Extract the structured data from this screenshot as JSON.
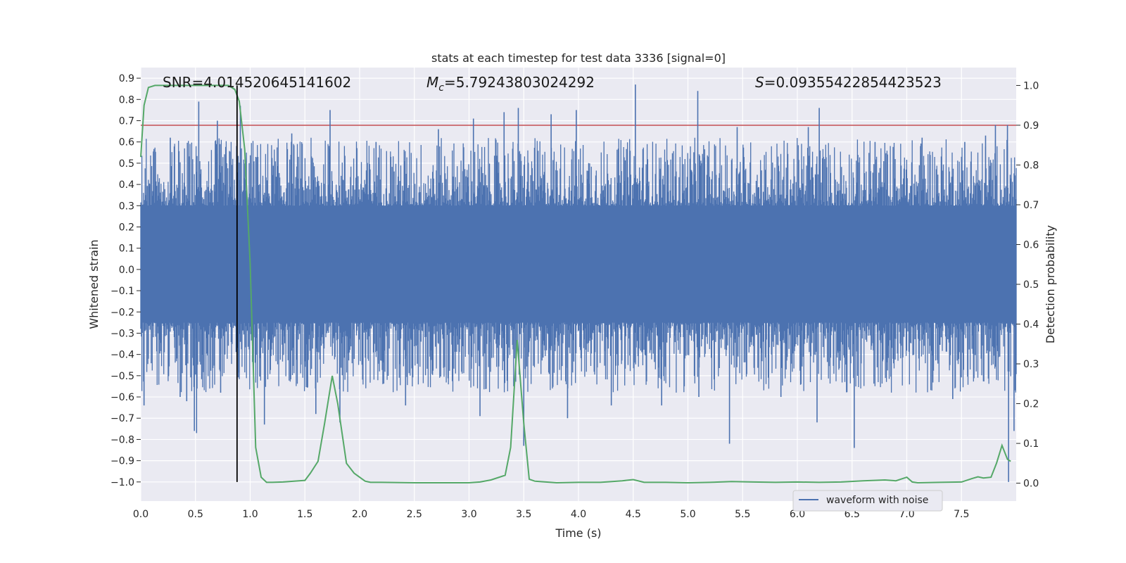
{
  "chart_data": {
    "type": "line",
    "title": "stats at each timestep for test data 3336 [signal=0]",
    "xlabel": "Time (s)",
    "ylabel": "Whitened strain",
    "y2label": "Detection probability",
    "xlim": [
      0.0,
      8.0
    ],
    "ylim": [
      -1.09,
      0.95
    ],
    "y2lim": [
      -0.045,
      1.045
    ],
    "x_ticks": [
      "0.0",
      "0.5",
      "1.0",
      "1.5",
      "2.0",
      "2.5",
      "3.0",
      "3.5",
      "4.0",
      "4.5",
      "5.0",
      "5.5",
      "6.0",
      "6.5",
      "7.0",
      "7.5"
    ],
    "y_ticks": [
      "0.9",
      "0.8",
      "0.7",
      "0.6",
      "0.5",
      "0.4",
      "0.3",
      "0.2",
      "0.1",
      "0.0",
      "−0.1",
      "−0.2",
      "−0.3",
      "−0.4",
      "−0.5",
      "−0.6",
      "−0.7",
      "−0.8",
      "−0.9",
      "−1.0"
    ],
    "y2_ticks": [
      "1.0",
      "0.9",
      "0.8",
      "0.7",
      "0.6",
      "0.5",
      "0.4",
      "0.3",
      "0.2",
      "0.1",
      "0.0"
    ],
    "grid": true,
    "legend": {
      "position": "bottom-right",
      "entries": [
        "waveform with noise"
      ]
    },
    "annotations": {
      "snr": "SNR=4.014520645141602",
      "mc_symbol": "M",
      "mc_sub": "c",
      "mc_value": "=5.79243803024292",
      "s_symbol": "S",
      "s_value": "=0.09355422854423523"
    },
    "threshold_y2": 0.9,
    "marker_x": 0.88,
    "series": [
      {
        "name": "waveform with noise",
        "axis": "left",
        "color": "#4c72b0",
        "spikes": [
          {
            "x": 0.03,
            "y": -0.64
          },
          {
            "x": 0.27,
            "y": 0.62
          },
          {
            "x": 0.36,
            "y": -0.6
          },
          {
            "x": 0.42,
            "y": -0.62
          },
          {
            "x": 0.49,
            "y": -0.76
          },
          {
            "x": 0.51,
            "y": -0.77
          },
          {
            "x": 0.53,
            "y": 0.79
          },
          {
            "x": 0.7,
            "y": 0.7
          },
          {
            "x": 0.73,
            "y": -0.58
          },
          {
            "x": 0.91,
            "y": 0.77
          },
          {
            "x": 1.13,
            "y": -0.73
          },
          {
            "x": 1.38,
            "y": 0.64
          },
          {
            "x": 1.6,
            "y": -0.68
          },
          {
            "x": 1.73,
            "y": 0.75
          },
          {
            "x": 1.82,
            "y": -0.72
          },
          {
            "x": 2.15,
            "y": 0.6
          },
          {
            "x": 2.42,
            "y": -0.64
          },
          {
            "x": 2.72,
            "y": 0.66
          },
          {
            "x": 3.04,
            "y": 0.71
          },
          {
            "x": 3.1,
            "y": -0.69
          },
          {
            "x": 3.32,
            "y": 0.74
          },
          {
            "x": 3.45,
            "y": 0.76
          },
          {
            "x": 3.5,
            "y": -0.83
          },
          {
            "x": 3.75,
            "y": 0.73
          },
          {
            "x": 3.9,
            "y": -0.7
          },
          {
            "x": 3.98,
            "y": 0.75
          },
          {
            "x": 4.3,
            "y": -0.64
          },
          {
            "x": 4.52,
            "y": 0.87
          },
          {
            "x": 4.76,
            "y": -0.64
          },
          {
            "x": 5.09,
            "y": 0.84
          },
          {
            "x": 5.1,
            "y": -0.6
          },
          {
            "x": 5.38,
            "y": -0.82
          },
          {
            "x": 5.45,
            "y": 0.67
          },
          {
            "x": 5.85,
            "y": -0.6
          },
          {
            "x": 6.1,
            "y": 0.67
          },
          {
            "x": 6.18,
            "y": -0.72
          },
          {
            "x": 6.2,
            "y": 0.76
          },
          {
            "x": 6.52,
            "y": -0.84
          },
          {
            "x": 6.71,
            "y": 0.6
          },
          {
            "x": 7.14,
            "y": 0.62
          },
          {
            "x": 7.42,
            "y": -0.61
          },
          {
            "x": 7.53,
            "y": 0.6
          },
          {
            "x": 7.72,
            "y": 0.63
          },
          {
            "x": 7.81,
            "y": 0.68
          },
          {
            "x": 7.92,
            "y": 0.68
          },
          {
            "x": 7.93,
            "y": -1.0
          },
          {
            "x": 7.98,
            "y": -0.76
          }
        ]
      },
      {
        "name": "",
        "axis": "right",
        "color": "#55a868",
        "x": [
          0.0,
          0.03,
          0.07,
          0.13,
          0.2,
          0.3,
          0.4,
          0.5,
          0.6,
          0.7,
          0.8,
          0.86,
          0.9,
          0.95,
          1.0,
          1.05,
          1.1,
          1.15,
          1.2,
          1.3,
          1.4,
          1.5,
          1.55,
          1.62,
          1.68,
          1.75,
          1.8,
          1.88,
          1.95,
          2.0,
          2.05,
          2.1,
          2.2,
          2.5,
          2.8,
          3.0,
          3.1,
          3.2,
          3.33,
          3.38,
          3.44,
          3.5,
          3.55,
          3.6,
          3.8,
          4.0,
          4.2,
          4.4,
          4.5,
          4.6,
          4.8,
          5.0,
          5.2,
          5.4,
          5.6,
          5.8,
          6.0,
          6.2,
          6.4,
          6.6,
          6.8,
          6.9,
          7.0,
          7.05,
          7.1,
          7.3,
          7.5,
          7.6,
          7.65,
          7.7,
          7.77,
          7.82,
          7.87,
          7.92,
          7.95
        ],
        "y": [
          0.82,
          0.95,
          0.995,
          1.0,
          1.0,
          1.0,
          1.0,
          1.0,
          1.0,
          1.0,
          1.0,
          0.99,
          0.96,
          0.84,
          0.55,
          0.09,
          0.015,
          0.002,
          0.002,
          0.003,
          0.005,
          0.007,
          0.025,
          0.055,
          0.15,
          0.27,
          0.2,
          0.05,
          0.025,
          0.015,
          0.005,
          0.002,
          0.002,
          0.001,
          0.001,
          0.001,
          0.003,
          0.008,
          0.02,
          0.09,
          0.36,
          0.15,
          0.01,
          0.005,
          0.001,
          0.002,
          0.002,
          0.006,
          0.009,
          0.002,
          0.002,
          0.001,
          0.002,
          0.004,
          0.003,
          0.002,
          0.003,
          0.002,
          0.003,
          0.006,
          0.008,
          0.006,
          0.015,
          0.003,
          0.001,
          0.002,
          0.003,
          0.012,
          0.016,
          0.013,
          0.015,
          0.05,
          0.095,
          0.06,
          0.055
        ]
      }
    ]
  }
}
